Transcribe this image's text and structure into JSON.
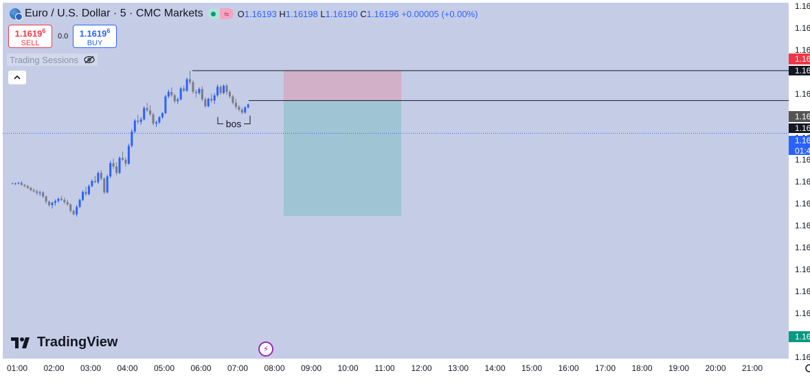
{
  "header": {
    "title": "Euro / U.S. Dollar · 5 · CMC Markets",
    "ohlc": {
      "o_label": "O",
      "o_value": "1.16193",
      "h_label": "H",
      "h_value": "1.16198",
      "l_label": "L",
      "l_value": "1.16190",
      "c_label": "C",
      "c_value": "1.16196",
      "change": "+0.00005 (+0.00%)"
    }
  },
  "trade": {
    "sell_price_main": "1.1619",
    "sell_price_sup": "6",
    "sell_label": "SELL",
    "spread": "0.0",
    "buy_price_main": "1.1619",
    "buy_price_sup": "6",
    "buy_label": "BUY"
  },
  "indicator": {
    "label": "Trading Sessions"
  },
  "branding": {
    "logo_text": "TradingView"
  },
  "icons": {
    "globe": "globe-icon",
    "live": "market-open-icon",
    "wave": "wave-icon",
    "eye_off": "eye-off-icon",
    "collapse": "chevron-up-icon",
    "flash": "lightning-icon",
    "settings": "gear-icon"
  },
  "colors": {
    "background": "#c5cde6",
    "axis_background": "#ffffff",
    "candle_up": "#2962ff",
    "candle_down": "#787b86",
    "stop_zone": "#d1b0c8",
    "target_zone": "#9fc5d4",
    "line": "#131722",
    "last_price_label": "#2962ff",
    "sell_label": "#f23645",
    "entry_label": "#555555",
    "bottom_label": "#089981"
  },
  "chart_data": {
    "type": "candlestick",
    "symbol": "Euro / U.S. Dollar",
    "interval": "5",
    "x_ticks": [
      "01:00",
      "02:00",
      "03:00",
      "04:00",
      "05:00",
      "06:00",
      "07:00",
      "08:00",
      "09:00",
      "10:00",
      "11:00",
      "12:00",
      "13:00",
      "14:00",
      "15:00",
      "16:00",
      "17:00",
      "18:00",
      "19:00",
      "20:00",
      "21:00"
    ],
    "y_tick_label": "1.16",
    "y_tick_count": 17,
    "grid": false,
    "candles_start_hour": 0.87,
    "candles_step_hours": 0.0833,
    "candles": [
      [
        1.16022,
        1.16024,
        1.16018,
        1.1602
      ],
      [
        1.1602,
        1.16024,
        1.16016,
        1.16022
      ],
      [
        1.16022,
        1.16026,
        1.16018,
        1.16024
      ],
      [
        1.16024,
        1.1603,
        1.16014,
        1.16016
      ],
      [
        1.16016,
        1.1602,
        1.16008,
        1.16012
      ],
      [
        1.16012,
        1.16016,
        1.16002,
        1.16006
      ],
      [
        1.16006,
        1.1601,
        1.15994,
        1.15998
      ],
      [
        1.15998,
        1.16004,
        1.1599,
        1.15994
      ],
      [
        1.15994,
        1.16,
        1.1598,
        1.15988
      ],
      [
        1.15988,
        1.15996,
        1.15978,
        1.1599
      ],
      [
        1.1599,
        1.15994,
        1.1597,
        1.15976
      ],
      [
        1.15976,
        1.1598,
        1.1595,
        1.15958
      ],
      [
        1.15958,
        1.15962,
        1.1594,
        1.15946
      ],
      [
        1.15946,
        1.15958,
        1.15934,
        1.15954
      ],
      [
        1.15954,
        1.15966,
        1.15944,
        1.1596
      ],
      [
        1.1596,
        1.15972,
        1.15954,
        1.15968
      ],
      [
        1.15968,
        1.15978,
        1.1596,
        1.15964
      ],
      [
        1.15964,
        1.15972,
        1.1595,
        1.15956
      ],
      [
        1.15956,
        1.15964,
        1.15944,
        1.15948
      ],
      [
        1.15948,
        1.15952,
        1.1592,
        1.15926
      ],
      [
        1.15926,
        1.1593,
        1.1591,
        1.15914
      ],
      [
        1.15914,
        1.15946,
        1.15906,
        1.1594
      ],
      [
        1.1594,
        1.15968,
        1.15936,
        1.15964
      ],
      [
        1.15964,
        1.15998,
        1.1596,
        1.15992
      ],
      [
        1.15992,
        1.1601,
        1.15978,
        1.15984
      ],
      [
        1.15984,
        1.16018,
        1.1598,
        1.16012
      ],
      [
        1.16012,
        1.16036,
        1.16008,
        1.1603
      ],
      [
        1.1603,
        1.16048,
        1.16022,
        1.16026
      ],
      [
        1.16026,
        1.16064,
        1.1602,
        1.16058
      ],
      [
        1.16058,
        1.16068,
        1.16032,
        1.16038
      ],
      [
        1.16038,
        1.16042,
        1.15984,
        1.1599
      ],
      [
        1.1599,
        1.16052,
        1.15986,
        1.16046
      ],
      [
        1.16046,
        1.161,
        1.1604,
        1.16092
      ],
      [
        1.16092,
        1.16108,
        1.16072,
        1.1608
      ],
      [
        1.1608,
        1.16094,
        1.1605,
        1.16058
      ],
      [
        1.16058,
        1.16116,
        1.16054,
        1.1611
      ],
      [
        1.1611,
        1.16132,
        1.161,
        1.16104
      ],
      [
        1.16104,
        1.16112,
        1.1608,
        1.1609
      ],
      [
        1.1609,
        1.1616,
        1.16086,
        1.16152
      ],
      [
        1.16152,
        1.1621,
        1.16146,
        1.16202
      ],
      [
        1.16202,
        1.16246,
        1.16196,
        1.1624
      ],
      [
        1.1624,
        1.1626,
        1.16228,
        1.16236
      ],
      [
        1.16236,
        1.16252,
        1.16226,
        1.16244
      ],
      [
        1.16244,
        1.1629,
        1.1624,
        1.16284
      ],
      [
        1.16284,
        1.16302,
        1.1627,
        1.16276
      ],
      [
        1.16276,
        1.16294,
        1.16256,
        1.16262
      ],
      [
        1.16262,
        1.16268,
        1.16224,
        1.1623
      ],
      [
        1.1623,
        1.1624,
        1.16218,
        1.16234
      ],
      [
        1.16234,
        1.16256,
        1.16228,
        1.16252
      ],
      [
        1.16252,
        1.1627,
        1.16246,
        1.16266
      ],
      [
        1.16266,
        1.1633,
        1.16262,
        1.16324
      ],
      [
        1.16324,
        1.16348,
        1.16318,
        1.1634
      ],
      [
        1.1634,
        1.16356,
        1.16322,
        1.16328
      ],
      [
        1.16328,
        1.16334,
        1.163,
        1.16308
      ],
      [
        1.16308,
        1.1632,
        1.16298,
        1.16314
      ],
      [
        1.16314,
        1.16358,
        1.1631,
        1.16352
      ],
      [
        1.16352,
        1.16362,
        1.1634,
        1.16344
      ],
      [
        1.16344,
        1.1639,
        1.1634,
        1.16384
      ],
      [
        1.16384,
        1.16414,
        1.16366,
        1.16374
      ],
      [
        1.16374,
        1.1638,
        1.16334,
        1.1634
      ],
      [
        1.1634,
        1.16348,
        1.1632,
        1.16336
      ],
      [
        1.16336,
        1.16356,
        1.1633,
        1.1635
      ],
      [
        1.1635,
        1.1636,
        1.16308,
        1.16314
      ],
      [
        1.16314,
        1.16322,
        1.16284,
        1.1629
      ],
      [
        1.1629,
        1.1632,
        1.16286,
        1.16316
      ],
      [
        1.16316,
        1.16334,
        1.16302,
        1.1631
      ],
      [
        1.1631,
        1.16336,
        1.16298,
        1.16328
      ],
      [
        1.16328,
        1.16366,
        1.16322,
        1.16358
      ],
      [
        1.16358,
        1.16364,
        1.1633,
        1.16336
      ],
      [
        1.16336,
        1.16366,
        1.16332,
        1.16362
      ],
      [
        1.16362,
        1.16368,
        1.1633,
        1.1634
      ],
      [
        1.1634,
        1.16346,
        1.16318,
        1.16324
      ],
      [
        1.16324,
        1.1633,
        1.16296,
        1.16302
      ],
      [
        1.16302,
        1.16316,
        1.1628,
        1.16288
      ],
      [
        1.16288,
        1.16294,
        1.16272,
        1.16278
      ],
      [
        1.16278,
        1.16286,
        1.16262,
        1.16268
      ],
      [
        1.16268,
        1.1629,
        1.16264,
        1.16286
      ],
      [
        1.16286,
        1.163,
        1.16282,
        1.16296
      ]
    ],
    "annotations": [
      {
        "type": "text",
        "text": "bos"
      }
    ],
    "position_tool": {
      "stop_top": 1.16414,
      "entry": 1.1631,
      "target": 1.15908,
      "start_hour": 8.25,
      "end_hour": 11.45
    },
    "horizontal_lines": [
      1.16414,
      1.1631
    ],
    "current_price": 1.16196,
    "axis_labels": {
      "tick": "1.16",
      "red_label": "1.16",
      "line_top_label": "1.16",
      "gray_label": "1.16",
      "line_entry_label": "1.16",
      "last_price_label": "1.16",
      "countdown_label": "01:4",
      "bottom_label": "1.16"
    }
  }
}
